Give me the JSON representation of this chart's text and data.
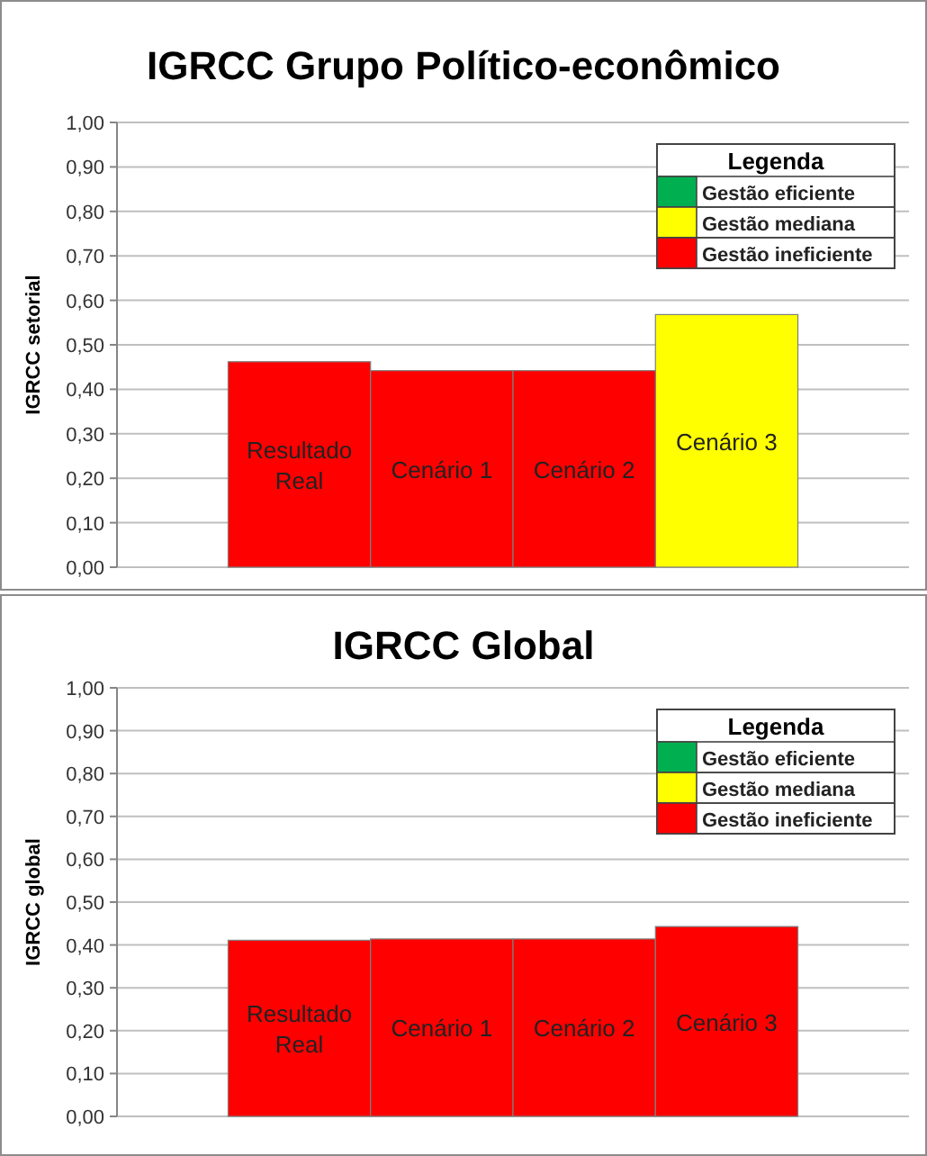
{
  "chart_data": [
    {
      "type": "bar",
      "title": "IGRCC Grupo Político-econômico",
      "ylabel": "IGRCC setorial",
      "legend_title": "Legenda",
      "legend": "top right",
      "grid": "y",
      "stacked": true,
      "categories": [
        "Resultado Real",
        "Cenário 1",
        "Cenário 2",
        "Cenário 3"
      ],
      "series": [
        {
          "name": "Gestão eficiente",
          "color": "#00b050",
          "values": [
            null,
            null,
            null,
            null
          ]
        },
        {
          "name": "Gestão mediana",
          "color": "#ffff00",
          "values": [
            null,
            null,
            null,
            0.568
          ]
        },
        {
          "name": "Gestão ineficiente",
          "color": "#ff0000",
          "values": [
            0.462,
            0.442,
            0.442,
            null
          ]
        }
      ],
      "ylim": [
        0,
        1
      ],
      "yticks": [
        {
          "value": 0,
          "label": "0,00"
        },
        {
          "value": 0.1,
          "label": "0,10"
        },
        {
          "value": 0.2,
          "label": "0,20"
        },
        {
          "value": 0.3,
          "label": "0,30"
        },
        {
          "value": 0.4,
          "label": "0,40"
        },
        {
          "value": 0.5,
          "label": "0,50"
        },
        {
          "value": 0.6,
          "label": "0,60"
        },
        {
          "value": 0.7,
          "label": "0,70"
        },
        {
          "value": 0.8,
          "label": "0,80"
        },
        {
          "value": 0.9,
          "label": "0,90"
        },
        {
          "value": 1,
          "label": "1,00"
        }
      ]
    },
    {
      "type": "bar",
      "title": "IGRCC Global",
      "ylabel": "IGRCC global",
      "legend_title": "Legenda",
      "legend": "top right",
      "grid": "y",
      "stacked": true,
      "categories": [
        "Resultado Real",
        "Cenário 1",
        "Cenário 2",
        "Cenário 3"
      ],
      "series": [
        {
          "name": "Gestão eficiente",
          "color": "#00b050",
          "values": [
            null,
            null,
            null,
            null
          ]
        },
        {
          "name": "Gestão mediana",
          "color": "#ffff00",
          "values": [
            null,
            null,
            null,
            null
          ]
        },
        {
          "name": "Gestão ineficiente",
          "color": "#ff0000",
          "values": [
            0.411,
            0.414,
            0.414,
            0.443
          ]
        }
      ],
      "ylim": [
        0,
        1
      ],
      "yticks": [
        {
          "value": 0,
          "label": "0,00"
        },
        {
          "value": 0.1,
          "label": "0,10"
        },
        {
          "value": 0.2,
          "label": "0,20"
        },
        {
          "value": 0.3,
          "label": "0,30"
        },
        {
          "value": 0.4,
          "label": "0,40"
        },
        {
          "value": 0.5,
          "label": "0,50"
        },
        {
          "value": 0.6,
          "label": "0,60"
        },
        {
          "value": 0.7,
          "label": "0,70"
        },
        {
          "value": 0.8,
          "label": "0,80"
        },
        {
          "value": 0.9,
          "label": "0,90"
        },
        {
          "value": 1,
          "label": "1,00"
        }
      ]
    }
  ]
}
